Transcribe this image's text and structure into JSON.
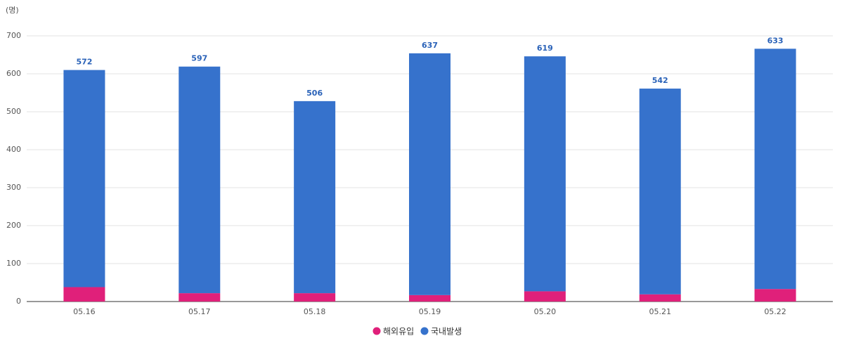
{
  "chart_data": {
    "type": "stacked_bar",
    "y_label": "(명)",
    "categories": [
      "05.16",
      "05.17",
      "05.18",
      "05.19",
      "05.20",
      "05.21",
      "05.22"
    ],
    "series": [
      {
        "name": "해외유입",
        "color": "#e0207a",
        "values": [
          38,
          22,
          22,
          17,
          27,
          19,
          33
        ]
      },
      {
        "name": "국내발생",
        "color": "#3672cc",
        "values": [
          572,
          597,
          506,
          637,
          619,
          542,
          633
        ]
      }
    ],
    "ylim": [
      0,
      700
    ],
    "yticks": [
      0,
      100,
      200,
      300,
      400,
      500,
      600,
      700
    ],
    "grid": true
  }
}
